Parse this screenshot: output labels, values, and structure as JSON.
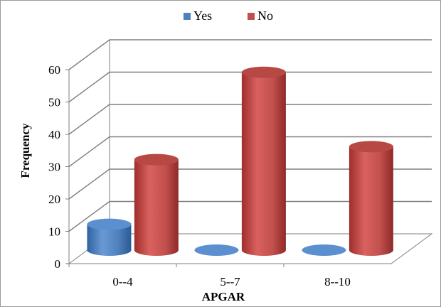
{
  "chart_data": {
    "type": "bar",
    "style": "3d-cylinder",
    "categories": [
      "0--4",
      "5--7",
      "8--10"
    ],
    "series": [
      {
        "name": "Yes",
        "values": [
          8,
          0,
          0
        ],
        "color": "#4f81bd"
      },
      {
        "name": "No",
        "values": [
          28,
          55,
          32
        ],
        "color": "#c0504d"
      }
    ],
    "xlabel": "APGAR",
    "ylabel": "Frequency",
    "ylim": [
      0,
      60
    ],
    "yticks": [
      0,
      10,
      20,
      30,
      40,
      50,
      60
    ],
    "grid": true,
    "legend": "top"
  }
}
